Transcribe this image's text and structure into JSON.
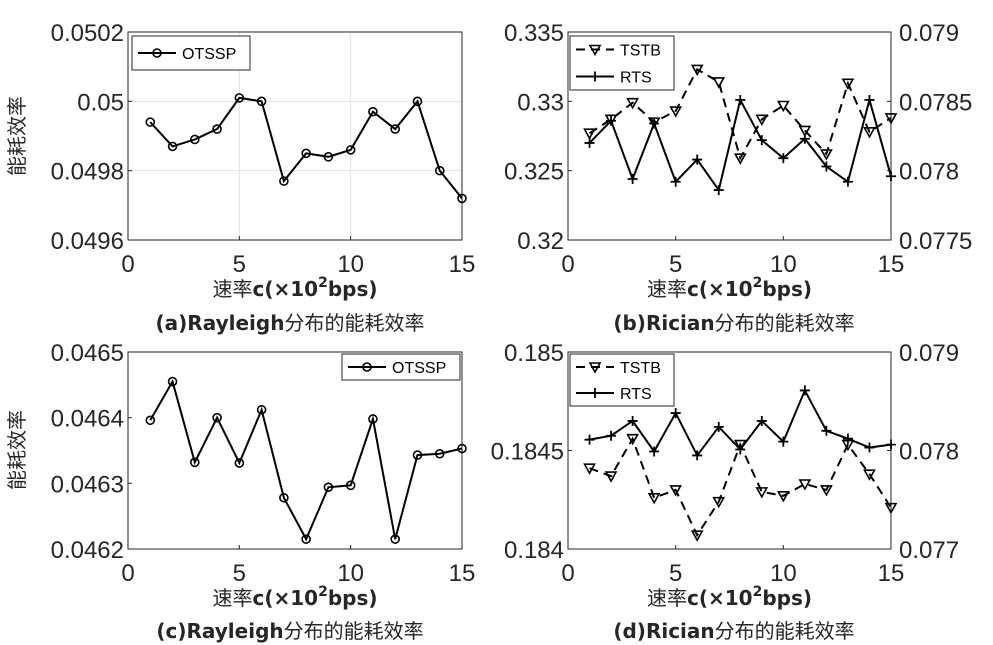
{
  "chart_data": [
    {
      "id": "a",
      "type": "line",
      "x": [
        1,
        2,
        3,
        4,
        5,
        6,
        7,
        8,
        9,
        10,
        11,
        12,
        13,
        14,
        15
      ],
      "xlim": [
        0,
        15
      ],
      "xticks": [
        "0",
        "5",
        "10",
        "15"
      ],
      "xlabel": "速率c(×10²bps)",
      "ylabel": "能耗效率",
      "ylim": [
        0.0496,
        0.0502
      ],
      "yticks": [
        "0.0496",
        "0.0498",
        "0.05",
        "0.0502"
      ],
      "grid": true,
      "legend_position": "top-left",
      "series": [
        {
          "name": "OTSSP",
          "marker": "circle",
          "line": "solid",
          "color": "#000000",
          "values": [
            0.04994,
            0.04987,
            0.04989,
            0.04992,
            0.05001,
            0.05,
            0.04977,
            0.04985,
            0.04984,
            0.04986,
            0.04997,
            0.04992,
            0.05,
            0.0498,
            0.04972
          ]
        }
      ],
      "caption": "(a)Rayleigh分布的能耗效率"
    },
    {
      "id": "b",
      "type": "line",
      "x": [
        1,
        2,
        3,
        4,
        5,
        6,
        7,
        8,
        9,
        10,
        11,
        12,
        13,
        14,
        15
      ],
      "xlim": [
        0,
        15
      ],
      "xticks": [
        "0",
        "5",
        "10",
        "15"
      ],
      "xlabel": "速率c(×10²bps)",
      "ylim_left": [
        0.32,
        0.335
      ],
      "yticks_left": [
        "0.32",
        "0.325",
        "0.33",
        "0.335"
      ],
      "ylim_right": [
        0.0775,
        0.079
      ],
      "yticks_right": [
        "0.0775",
        "0.078",
        "0.0785",
        "0.079"
      ],
      "grid": false,
      "legend_position": "top-left",
      "series": [
        {
          "name": "TSTB",
          "axis": "left",
          "marker": "triangle-down",
          "line": "dashed",
          "color": "#000000",
          "values": [
            0.3277,
            0.3287,
            0.3299,
            0.3285,
            0.3293,
            0.3323,
            0.3314,
            0.3259,
            0.3287,
            0.3297,
            0.3279,
            0.3262,
            0.3313,
            0.3278,
            0.3288
          ]
        },
        {
          "name": "RTS",
          "axis": "right",
          "marker": "plus",
          "line": "solid",
          "color": "#000000",
          "values": [
            0.0782,
            0.07836,
            0.07794,
            0.07834,
            0.07792,
            0.07808,
            0.07786,
            0.07851,
            0.07822,
            0.07809,
            0.07823,
            0.07803,
            0.07792,
            0.07851,
            0.07796
          ]
        }
      ],
      "caption": "(b)Rician分布的能耗效率"
    },
    {
      "id": "c",
      "type": "line",
      "x": [
        1,
        2,
        3,
        4,
        5,
        6,
        7,
        8,
        9,
        10,
        11,
        12,
        13,
        14,
        15
      ],
      "xlim": [
        0,
        15
      ],
      "xticks": [
        "0",
        "5",
        "10",
        "15"
      ],
      "xlabel": "速率c(×10²bps)",
      "ylabel": "能耗效率",
      "ylim": [
        0.0462,
        0.0465
      ],
      "yticks": [
        "0.0462",
        "0.0463",
        "0.0464",
        "0.0465"
      ],
      "grid": false,
      "legend_position": "top-right",
      "series": [
        {
          "name": "OTSSP",
          "marker": "circle",
          "line": "solid",
          "color": "#000000",
          "values": [
            0.046396,
            0.046455,
            0.046332,
            0.0464,
            0.046331,
            0.046412,
            0.046278,
            0.046215,
            0.046294,
            0.046297,
            0.046398,
            0.046215,
            0.046343,
            0.046345,
            0.046353
          ]
        }
      ],
      "caption": "(c)Rayleigh分布的能耗效率"
    },
    {
      "id": "d",
      "type": "line",
      "x": [
        1,
        2,
        3,
        4,
        5,
        6,
        7,
        8,
        9,
        10,
        11,
        12,
        13,
        14,
        15
      ],
      "xlim": [
        0,
        15
      ],
      "xticks": [
        "0",
        "5",
        "10",
        "15"
      ],
      "xlabel": "速率c(×10²bps)",
      "ylim_left": [
        0.184,
        0.185
      ],
      "yticks_left": [
        "0.184",
        "0.1845",
        "0.185"
      ],
      "ylim_right": [
        0.077,
        0.079
      ],
      "yticks_right": [
        "0.077",
        "0.078",
        "0.079"
      ],
      "grid": false,
      "legend_position": "top-left",
      "series": [
        {
          "name": "TSTB",
          "axis": "left",
          "marker": "triangle-down",
          "line": "dashed",
          "color": "#000000",
          "values": [
            0.18441,
            0.18437,
            0.18456,
            0.18426,
            0.1843,
            0.18407,
            0.18424,
            0.18453,
            0.18429,
            0.18427,
            0.18433,
            0.1843,
            0.18453,
            0.18438,
            0.18421
          ]
        },
        {
          "name": "RTS",
          "axis": "right",
          "marker": "plus",
          "line": "solid",
          "color": "#000000",
          "values": [
            0.07811,
            0.07815,
            0.0783,
            0.07799,
            0.07838,
            0.07795,
            0.07824,
            0.07801,
            0.0783,
            0.07809,
            0.07861,
            0.0782,
            0.07812,
            0.07803,
            0.07806
          ]
        }
      ],
      "caption": "(d)Rician分布的能耗效率"
    }
  ]
}
